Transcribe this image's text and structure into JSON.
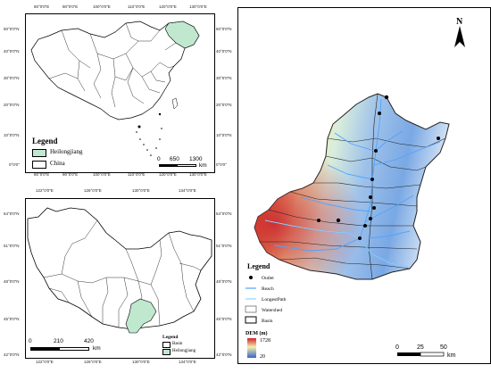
{
  "panel_a": {
    "top_ticks": [
      "80°0'0\"E",
      "90°0'0\"E",
      "100°0'0\"E",
      "110°0'0\"E",
      "120°0'0\"E",
      "130°0'0\"E"
    ],
    "bottom_ticks": [
      "80°0'0\"E",
      "90°0'0\"E",
      "100°0'0\"E",
      "110°0'0\"E",
      "120°0'0\"E",
      "130°0'0\"E"
    ],
    "lat_ticks": [
      "50°0'0\"N",
      "40°0'0\"N",
      "30°0'0\"N",
      "20°0'0\"N",
      "10°0'0\"N",
      "0°0'0\""
    ],
    "legend": {
      "title": "Legend",
      "items": [
        {
          "label": "Heilongjiang",
          "color": "#bfe8cf"
        },
        {
          "label": "China",
          "color": "#ffffff"
        }
      ]
    },
    "scalebar": {
      "labels": [
        "0",
        "650",
        "1300"
      ],
      "unit": "km"
    }
  },
  "panel_b": {
    "top_ticks": [
      "122°0'0\"E",
      "126°0'0\"E",
      "130°0'0\"E",
      "134°0'0\"E"
    ],
    "bottom_ticks": [
      "122°0'0\"E",
      "126°0'0\"E",
      "130°0'0\"E",
      "134°0'0\"E"
    ],
    "lat_ticks": [
      "54°0'0\"N",
      "51°0'0\"N",
      "48°0'0\"N",
      "45°0'0\"N",
      "42°0'0\"N"
    ],
    "legend": {
      "title": "Legend",
      "items": [
        {
          "label": "Basin",
          "color": "#ffffff"
        },
        {
          "label": "Heilongjiang",
          "color": "#bfe8cf"
        }
      ]
    },
    "scalebar": {
      "labels": [
        "0",
        "210",
        "420"
      ],
      "unit": "km"
    }
  },
  "panel_c": {
    "north_label": "N",
    "legend": {
      "title": "Legend",
      "items": [
        {
          "label": "Outlet"
        },
        {
          "label": "Reach"
        },
        {
          "label": "LongestPath"
        },
        {
          "label": "Watershed"
        },
        {
          "label": "Basin"
        }
      ]
    },
    "dem": {
      "title": "DEM (m)",
      "max": "1728",
      "min": "20"
    },
    "scalebar": {
      "labels": [
        "0",
        "25",
        "50"
      ],
      "unit": "km"
    },
    "colors": {
      "reach": "#4fa3ff",
      "longest_path": "#8fd6ff",
      "dem_high": "#d2242a",
      "dem_mid": "#f2efae",
      "dem_low": "#3a63c7"
    }
  }
}
